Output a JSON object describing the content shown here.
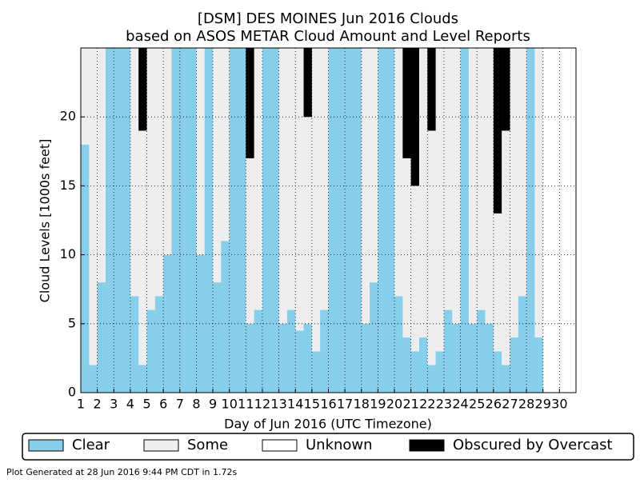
{
  "chart_data": {
    "type": "stacked-bar",
    "title": "[DSM] DES MOINES Jun 2016 Clouds",
    "subtitle": "based on ASOS METAR Cloud Amount and Level Reports",
    "xlabel": "Day of Jun 2016 (UTC Timezone)",
    "ylabel": "Cloud Levels [1000s feet]",
    "footer": "Plot Generated at 28 Jun 2016 9:44 PM CDT in 1.72s",
    "x": [
      1,
      1.5,
      2,
      2.5,
      3,
      3.5,
      4,
      4.5,
      5,
      5.5,
      6,
      6.5,
      7,
      7.5,
      8,
      8.5,
      9,
      9.5,
      10,
      10.5,
      11,
      11.5,
      12,
      12.5,
      13,
      13.5,
      14,
      14.5,
      15,
      15.5,
      16,
      16.5,
      17,
      17.5,
      18,
      18.5,
      19,
      19.5,
      20,
      20.5,
      21,
      21.5,
      22,
      22.5,
      23,
      23.5,
      24,
      24.5,
      25,
      25.5,
      26,
      26.5,
      27,
      27.5,
      28,
      28.5,
      29,
      29.5,
      30,
      30.5
    ],
    "series": [
      {
        "name": "Clear",
        "color": "#87ceeb",
        "values": [
          18,
          2,
          8,
          25,
          25,
          25,
          7,
          2,
          6,
          7,
          10,
          25,
          25,
          25,
          10,
          25,
          8,
          11,
          25,
          25,
          5,
          6,
          25,
          25,
          5,
          6,
          4.5,
          5,
          3,
          6,
          25,
          25,
          25,
          25,
          5,
          8,
          25,
          25,
          7,
          4,
          3,
          4,
          2,
          3,
          6,
          5,
          25,
          5,
          6,
          5,
          3,
          2,
          4,
          7,
          25,
          4,
          0,
          0,
          0,
          0
        ]
      },
      {
        "name": "Some",
        "color": "#eeeeee",
        "values": [
          7,
          23,
          17,
          0,
          0,
          0,
          18,
          17,
          19,
          18,
          15,
          0,
          0,
          0,
          15,
          0,
          17,
          14,
          0,
          0,
          12,
          19,
          0,
          0,
          20,
          19,
          20.5,
          15,
          22,
          19,
          0,
          0,
          0,
          0,
          20,
          17,
          0,
          0,
          18,
          13,
          12,
          21,
          17,
          22,
          19,
          20,
          0,
          20,
          19,
          20,
          10,
          17,
          21,
          18,
          0,
          21,
          0,
          0,
          0,
          0
        ]
      },
      {
        "name": "Unknown",
        "color": "#ffffff",
        "values": [
          0,
          0,
          0,
          0,
          0,
          0,
          0,
          0,
          0,
          0,
          0,
          0,
          0,
          0,
          0,
          0,
          0,
          0,
          0,
          0,
          0,
          0,
          0,
          0,
          0,
          0,
          0,
          0,
          0,
          0,
          0,
          0,
          0,
          0,
          0,
          0,
          0,
          0,
          0,
          0,
          0,
          0,
          0,
          0,
          0,
          0,
          0,
          0,
          0,
          0,
          0,
          0,
          0,
          0,
          0,
          0,
          25,
          25,
          25,
          25
        ]
      },
      {
        "name": "Obscured by Overcast",
        "color": "#000000",
        "values": [
          0,
          0,
          0,
          0,
          0,
          0,
          0,
          6,
          0,
          0,
          0,
          0,
          0,
          0,
          0,
          0,
          0,
          0,
          0,
          0,
          8,
          0,
          0,
          0,
          0,
          0,
          0,
          5,
          0,
          0,
          0,
          0,
          0,
          0,
          0,
          0,
          0,
          0,
          0,
          8,
          10,
          0,
          6,
          0,
          0,
          0,
          0,
          0,
          0,
          0,
          12,
          6,
          0,
          0,
          0,
          0,
          0,
          0,
          0,
          0
        ]
      }
    ],
    "xlim": [
      1,
      31
    ],
    "xticks": [
      1,
      2,
      3,
      4,
      5,
      6,
      7,
      8,
      9,
      10,
      11,
      12,
      13,
      14,
      15,
      16,
      17,
      18,
      19,
      20,
      21,
      22,
      23,
      24,
      25,
      26,
      27,
      28,
      29,
      30
    ],
    "ylim": [
      0,
      25
    ],
    "yticks": [
      0,
      5,
      10,
      15,
      20
    ],
    "grid": true
  }
}
